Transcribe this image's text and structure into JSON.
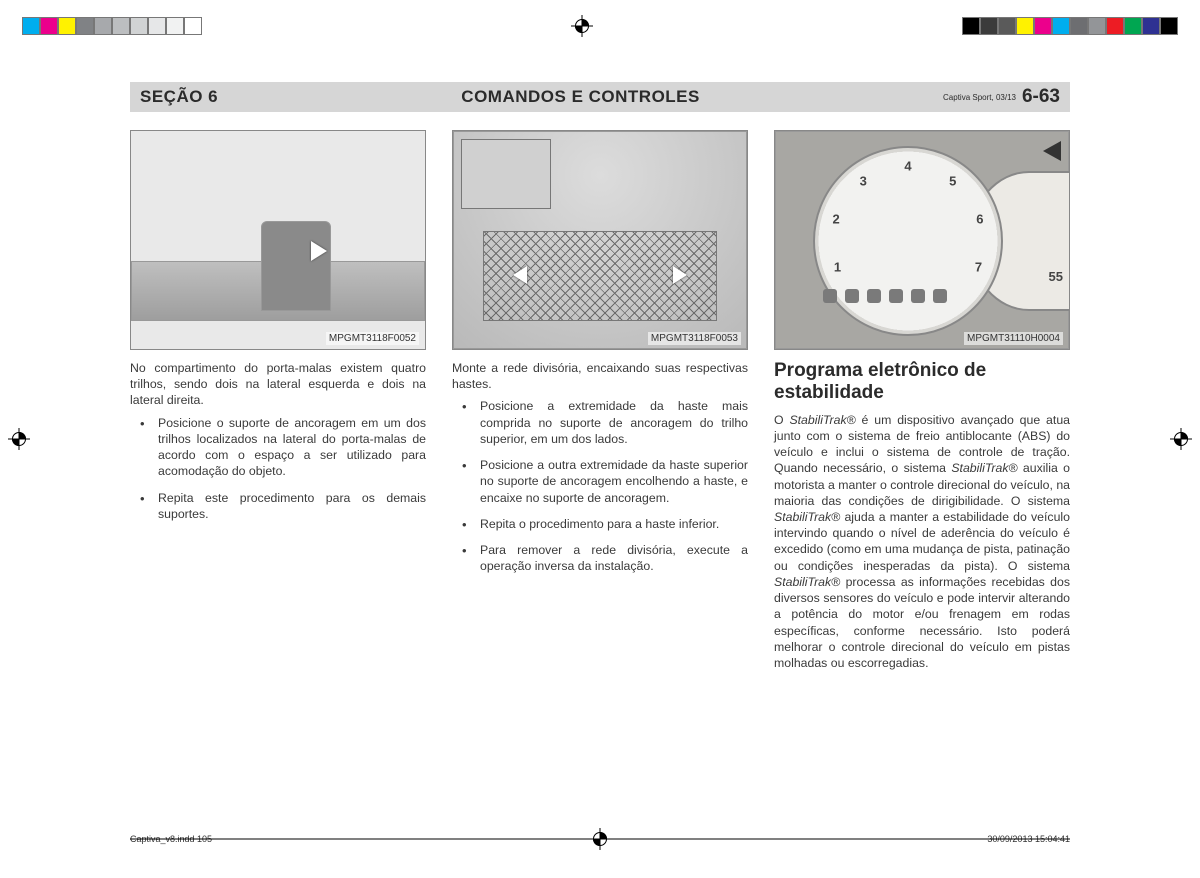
{
  "printbar": {
    "left_colors": [
      "#00aeef",
      "#ec008c",
      "#fff200",
      "#808285",
      "#a7a9ac",
      "#bcbec0",
      "#d1d3d4",
      "#e6e7e8",
      "#f1f2f2",
      "#ffffff"
    ],
    "right_colors": [
      "#000000",
      "#3b3b3b",
      "#5a5a5a",
      "#fff200",
      "#ec008c",
      "#00aeef",
      "#6d6e71",
      "#939598",
      "#ed1c24",
      "#00a651",
      "#2e3192",
      "#000000"
    ]
  },
  "header": {
    "section": "SEÇÃO 6",
    "title": "COMANDOS E CONTROLES",
    "meta": "Captiva Sport, 03/13",
    "pageno": "6-63"
  },
  "col1": {
    "figure_label": "MPGMT3118F0052",
    "intro": "No compartimento do porta-malas existem quatro trilhos, sendo dois na lateral esquerda e dois na lateral direita.",
    "bullets": [
      "Posicione o suporte de ancoragem em um dos trilhos localizados na lateral do porta-malas de acordo com o espaço a ser utilizado para acomodação do objeto.",
      "Repita este procedimento para os demais suportes."
    ]
  },
  "col2": {
    "figure_label": "MPGMT3118F0053",
    "intro": "Monte a rede divisória, encaixando suas respectivas hastes.",
    "bullets": [
      "Posicione a extremidade da haste mais comprida no suporte de ancoragem do trilho superior, em um dos lados.",
      "Posicione a outra extremidade da haste superior no suporte de ancoragem encolhendo a haste, e encaixe no suporte de ancoragem.",
      "Repita o procedimento para a haste inferior.",
      "Para remover a rede divisória, execute a operação inversa da instalação."
    ]
  },
  "col3": {
    "figure_label": "MPGMT31110H0004",
    "gauge_numbers": [
      "1",
      "2",
      "3",
      "4",
      "5",
      "6",
      "7"
    ],
    "gauge_side": "55",
    "heading": "Programa eletrônico de estabilidade",
    "para_parts": [
      "O ",
      "StabiliTrak®",
      " é um dispositivo avançado que atua junto com o sistema de freio antiblocante (ABS) do veículo e inclui o sistema de controle de tração. Quando necessário, o sistema ",
      "StabiliTrak®",
      " auxilia o motorista a manter o controle direcional do veículo, na maioria das condições de dirigibilidade. O sistema ",
      "StabiliTrak®",
      " ajuda a manter a estabilidade do veículo intervindo quando o nível de aderência do veículo é excedido (como em uma mudança de pista, patinação ou condições inesperadas da pista). O sistema ",
      "StabiliTrak®",
      " processa as informações recebidas dos diversos sensores do veículo e pode intervir alterando a potência do motor e/ou frenagem em rodas específicas, conforme necessário. Isto poderá melhorar o controle direcional do veículo em pistas molhadas ou escorregadias."
    ]
  },
  "footer": {
    "left": "Captiva_v8.indd   105",
    "right": "30/09/2013   15:04:41"
  }
}
